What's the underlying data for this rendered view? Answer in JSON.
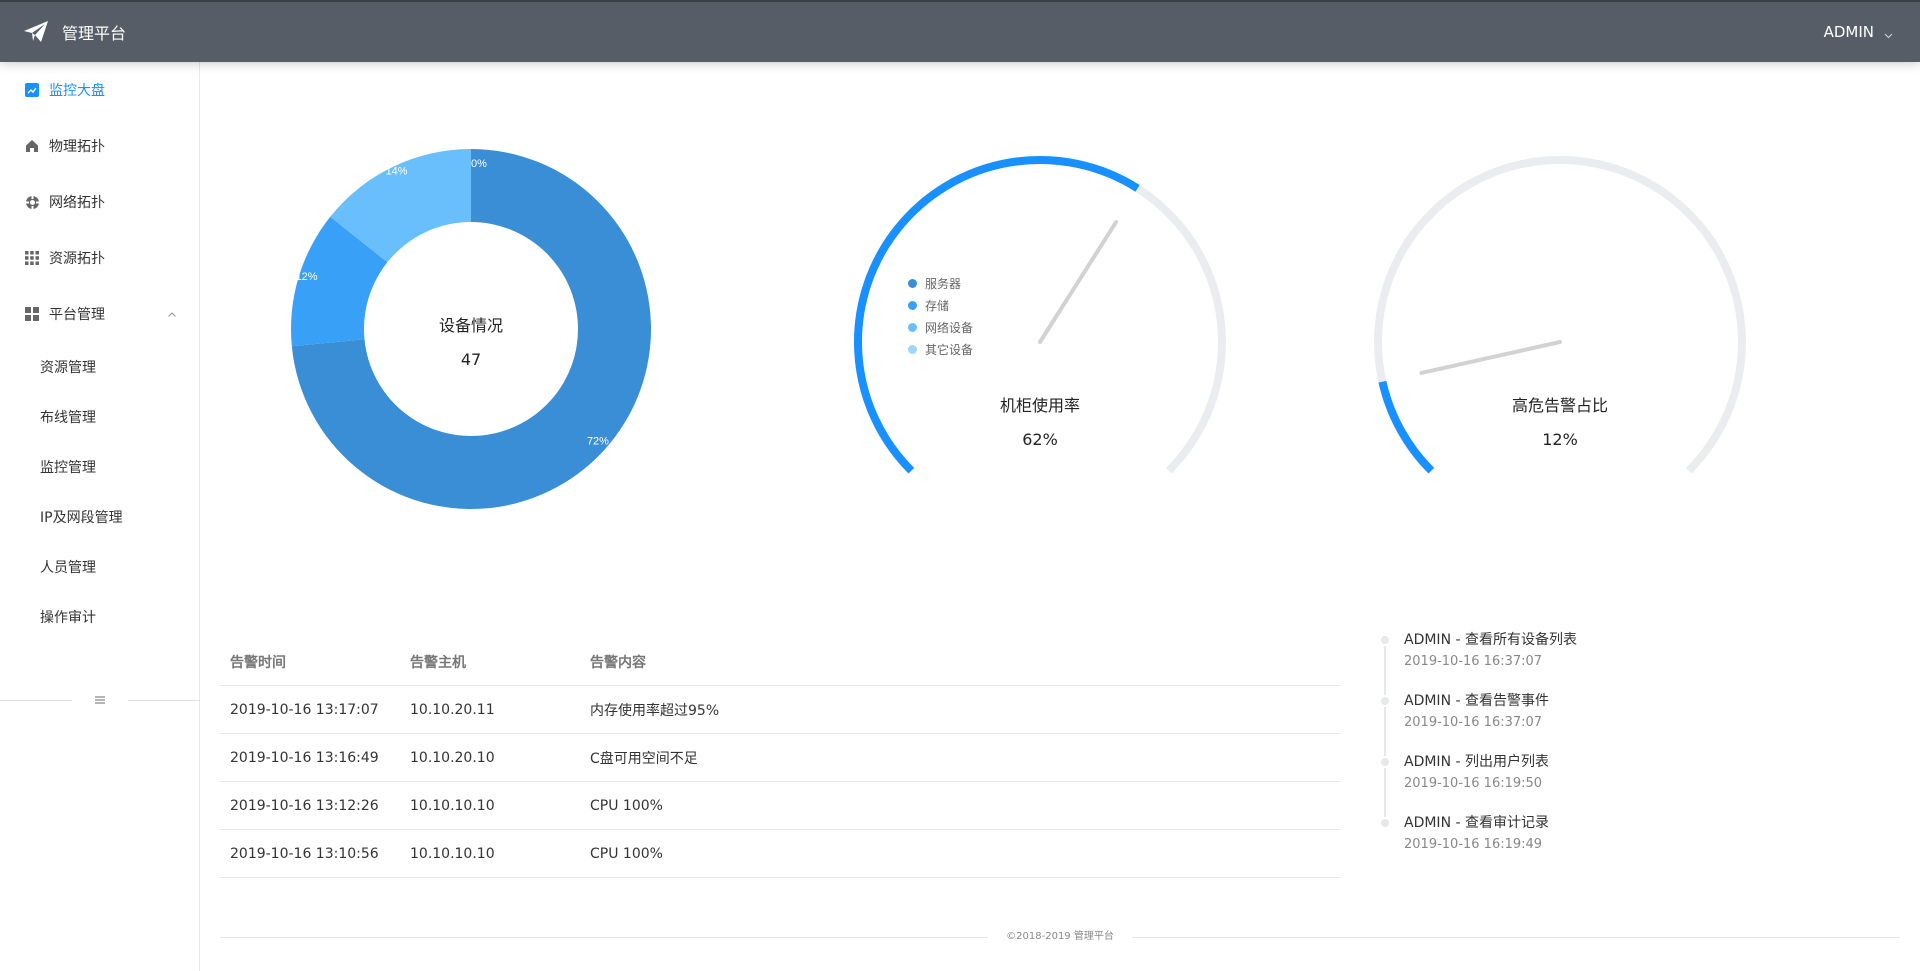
{
  "header": {
    "title": "管理平台",
    "user": "ADMIN",
    "logo_icon": "paper-plane-icon"
  },
  "sidebar": {
    "items": [
      {
        "label": "监控大盘",
        "icon": "line-chart-icon",
        "active": true
      },
      {
        "label": "物理拓扑",
        "icon": "home-icon"
      },
      {
        "label": "网络拓扑",
        "icon": "network-icon"
      },
      {
        "label": "资源拓扑",
        "icon": "grid-icon"
      },
      {
        "label": "平台管理",
        "icon": "dashboard-icon",
        "expanded": true
      }
    ],
    "sub_items": [
      "资源管理",
      "布线管理",
      "监控管理",
      "IP及网段管理",
      "人员管理",
      "操作审计"
    ]
  },
  "device_chart": {
    "center_title": "设备情况",
    "center_value": "47",
    "legend": [
      "服务器",
      "存储",
      "网络设备",
      "其它设备"
    ],
    "labels": [
      "72%",
      "12%",
      "14%",
      "0%"
    ]
  },
  "gauges": [
    {
      "title": "机柜使用率",
      "value_label": "62%",
      "value": 62
    },
    {
      "title": "高危告警占比",
      "value_label": "12%",
      "value": 12
    }
  ],
  "chart_data": {
    "type": "pie",
    "title": "设备情况",
    "categories": [
      "服务器",
      "存储",
      "网络设备",
      "其它设备"
    ],
    "values": [
      72,
      12,
      14,
      0
    ],
    "colors": [
      "#3a8ed6",
      "#39a0f8",
      "#69befc",
      "#9dd6fd"
    ]
  },
  "alerts": {
    "headers": [
      "告警时间",
      "告警主机",
      "告警内容"
    ],
    "rows": [
      [
        "2019-10-16 13:17:07",
        "10.10.20.11",
        "内存使用率超过95%"
      ],
      [
        "2019-10-16 13:16:49",
        "10.10.20.10",
        "C盘可用空间不足"
      ],
      [
        "2019-10-16 13:12:26",
        "10.10.10.10",
        "CPU 100%"
      ],
      [
        "2019-10-16 13:10:56",
        "10.10.10.10",
        "CPU 100%"
      ]
    ]
  },
  "timeline": [
    {
      "title": "ADMIN - 查看所有设备列表",
      "time": "2019-10-16 16:37:07"
    },
    {
      "title": "ADMIN - 查看告警事件",
      "time": "2019-10-16 16:37:07"
    },
    {
      "title": "ADMIN - 列出用户列表",
      "time": "2019-10-16 16:19:50"
    },
    {
      "title": "ADMIN - 查看审计记录",
      "time": "2019-10-16 16:19:49"
    }
  ],
  "footer": "©2018-2019 管理平台",
  "colors": {
    "accent": "#1890ff",
    "header_bg": "#565d66",
    "gauge_track": "#ebecf0"
  }
}
